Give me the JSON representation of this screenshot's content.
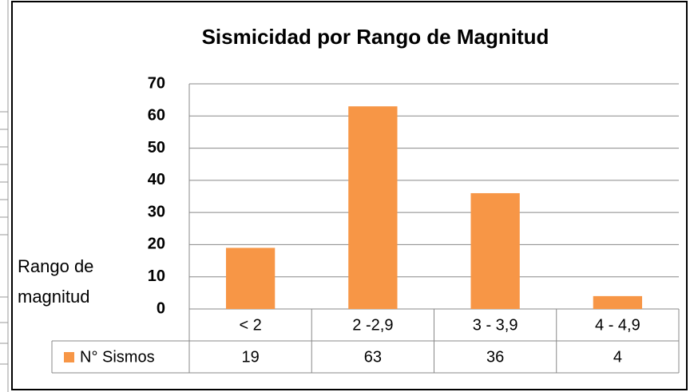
{
  "chart_data": {
    "type": "bar",
    "title": "Sismicidad por Rango de Magnitud",
    "y_label": "Rango de magnitud",
    "categories": [
      "< 2",
      "2 -2,9",
      "3 - 3,9",
      "4 - 4,9"
    ],
    "series": [
      {
        "name": "N° Sismos",
        "color": "#f79646",
        "values": [
          19,
          63,
          36,
          4
        ]
      }
    ],
    "ylim": [
      0,
      70
    ],
    "yticks": [
      0,
      10,
      20,
      30,
      40,
      50,
      60,
      70
    ],
    "grid": true,
    "data_table": true
  }
}
